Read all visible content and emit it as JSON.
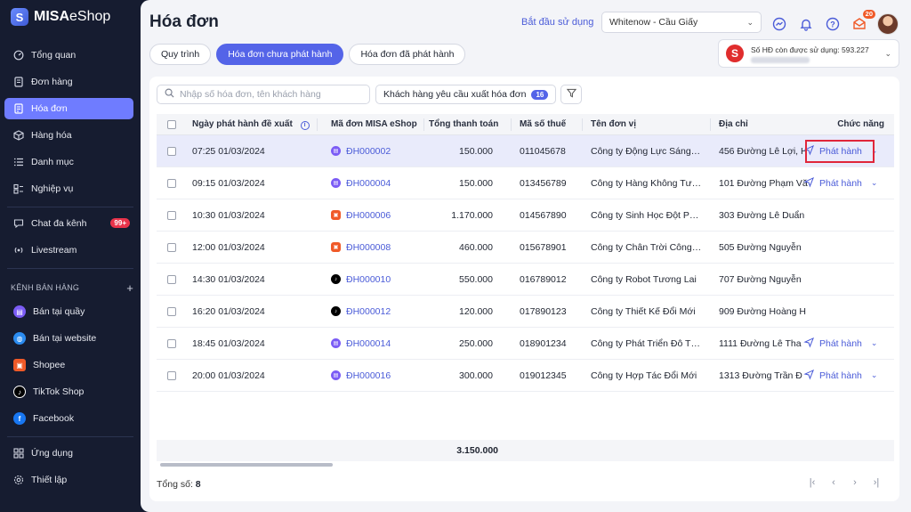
{
  "app": {
    "logo_bold": "MISA",
    "logo_rest": "eShop"
  },
  "sidebar": {
    "items": [
      {
        "label": "Tổng quan",
        "icon": "dashboard-icon"
      },
      {
        "label": "Đơn hàng",
        "icon": "order-icon"
      },
      {
        "label": "Hóa đơn",
        "icon": "invoice-icon",
        "active": true
      },
      {
        "label": "Hàng hóa",
        "icon": "box-icon"
      },
      {
        "label": "Danh mục",
        "icon": "list-icon"
      },
      {
        "label": "Nghiệp vụ",
        "icon": "task-icon"
      },
      {
        "label": "Chat đa kênh",
        "icon": "chat-icon",
        "badge": "99+"
      },
      {
        "label": "Livestream",
        "icon": "livestream-icon"
      }
    ],
    "channels_heading": "KÊNH BÁN HÀNG",
    "channels": [
      {
        "label": "Bán tại quầy",
        "icon": "pos-icon",
        "color": "#7b5cf5"
      },
      {
        "label": "Bán tại website",
        "icon": "globe-icon",
        "color": "#2b8cf0"
      },
      {
        "label": "Shopee",
        "icon": "shopee-icon",
        "color": "#f05a28"
      },
      {
        "label": "TikTok Shop",
        "icon": "tiktok-icon",
        "color": "#000000"
      },
      {
        "label": "Facebook",
        "icon": "facebook-icon",
        "color": "#1877f2"
      }
    ],
    "bottom": [
      {
        "label": "Ứng dụng",
        "icon": "apps-icon"
      },
      {
        "label": "Thiết lập",
        "icon": "settings-icon"
      }
    ]
  },
  "header": {
    "title": "Hóa đơn",
    "start_link": "Bắt đầu sử dụng",
    "store": "Whitenow - Cầu Giấy",
    "notification_count": "20"
  },
  "tabs": [
    {
      "label": "Quy trình",
      "active": false
    },
    {
      "label": "Hóa đơn chưa phát hành",
      "active": true
    },
    {
      "label": "Hóa đơn đã phát hành",
      "active": false
    }
  ],
  "quota": {
    "text": "Số HĐ còn được sử dụng: 593.227"
  },
  "toolbar": {
    "search_placeholder": "Nhập số hóa đơn, tên khách hàng",
    "request_label": "Khách hàng yêu cầu xuất hóa đơn",
    "request_count": "16"
  },
  "table": {
    "columns": {
      "date": "Ngày phát hành đề xuất",
      "code": "Mã đơn MISA eShop",
      "total": "Tổng thanh toán",
      "tax": "Mã số thuế",
      "name": "Tên đơn vị",
      "address": "Địa chỉ",
      "action": "Chức năng"
    },
    "action_label": "Phát hành",
    "rows": [
      {
        "date": "07:25 01/03/2024",
        "code": "ĐH000002",
        "channel": "pos",
        "total": "150.000",
        "tax": "011045678",
        "name": "Công ty Động Lực Sáng…",
        "address": "456 Đường Lê Lợi, H",
        "action": true,
        "selected": true
      },
      {
        "date": "09:15 01/03/2024",
        "code": "ĐH000004",
        "channel": "pos",
        "total": "150.000",
        "tax": "013456789",
        "name": "Công ty Hàng Không Tư…",
        "address": "101 Đường Phạm Vă",
        "action": true
      },
      {
        "date": "10:30 01/03/2024",
        "code": "ĐH000006",
        "channel": "shopee",
        "total": "1.170.000",
        "tax": "014567890",
        "name": "Công ty Sinh Học Đột P…",
        "address": "303 Đường Lê Duẩn",
        "action": false
      },
      {
        "date": "12:00 01/03/2024",
        "code": "ĐH000008",
        "channel": "shopee",
        "total": "460.000",
        "tax": "015678901",
        "name": "Công ty Chân Trời Công…",
        "address": "505 Đường Nguyễn",
        "action": false
      },
      {
        "date": "14:30 01/03/2024",
        "code": "ĐH000010",
        "channel": "tiktok",
        "total": "550.000",
        "tax": "016789012",
        "name": "Công ty Robot Tương Lai",
        "address": "707 Đường Nguyễn",
        "action": false
      },
      {
        "date": "16:20 01/03/2024",
        "code": "ĐH000012",
        "channel": "tiktok",
        "total": "120.000",
        "tax": "017890123",
        "name": "Công ty Thiết Kế Đổi Mới",
        "address": "909 Đường Hoàng H",
        "action": false
      },
      {
        "date": "18:45 01/03/2024",
        "code": "ĐH000014",
        "channel": "pos",
        "total": "250.000",
        "tax": "018901234",
        "name": "Công ty Phát Triển Đô T…",
        "address": "1111 Đường Lê Tha",
        "action": true
      },
      {
        "date": "20:00 01/03/2024",
        "code": "ĐH000016",
        "channel": "pos",
        "total": "300.000",
        "tax": "019012345",
        "name": "Công ty Hợp Tác Đổi Mới",
        "address": "1313 Đường Trần Đ",
        "action": true
      }
    ],
    "sum_total": "3.150.000"
  },
  "footer": {
    "total_label": "Tổng số:",
    "total_count": "8"
  },
  "colors": {
    "accent": "#5464e8",
    "link": "#4a5bd8",
    "highlight": "#e0263a"
  }
}
